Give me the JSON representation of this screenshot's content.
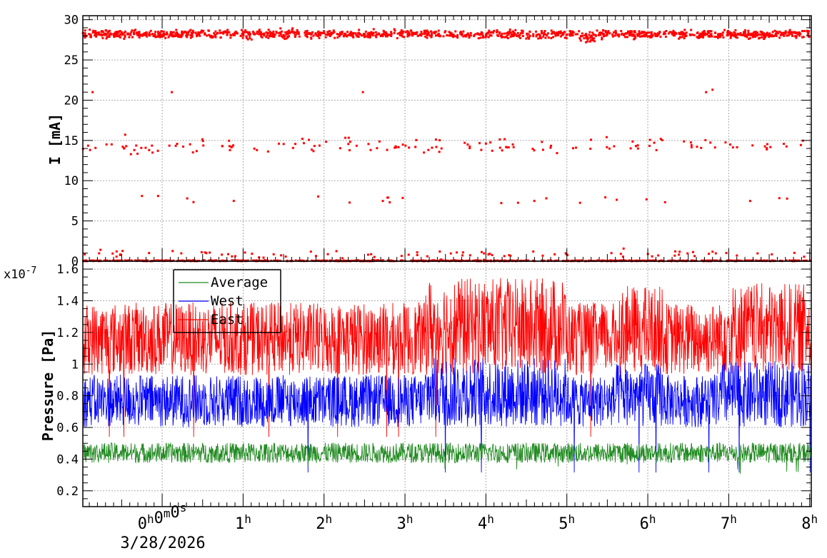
{
  "chart_data": [
    {
      "type": "scatter",
      "ylabel": "I [mA]",
      "ylim": [
        0,
        30.5
      ],
      "yticks": [
        0,
        5,
        10,
        15,
        20,
        25,
        30
      ],
      "grid": true,
      "marker_color": "#ff0000",
      "x_unit": "hours",
      "xlim": [
        -0.98,
        8.02
      ],
      "series": [
        {
          "bands": [
            {
              "name_hint": "main",
              "level": 28.2,
              "spread": 0.25,
              "count": 1300
            },
            {
              "name_hint": "mid",
              "level": 14.4,
              "spread": 0.45,
              "count": 150
            },
            {
              "name_hint": "low",
              "level": 7.6,
              "spread": 0.4,
              "count": 22
            },
            {
              "name_hint": "near-zero",
              "level": 0.8,
              "spread": 0.25,
              "count": 85
            },
            {
              "name_hint": "zero",
              "level": 0.05,
              "spread": 0.03,
              "count": 700
            }
          ],
          "points": [
            {
              "x": -0.86,
              "y": 21.0
            },
            {
              "x": 0.12,
              "y": 21.0
            },
            {
              "x": 2.48,
              "y": 21.0
            },
            {
              "x": 6.72,
              "y": 21.0
            },
            {
              "x": 6.8,
              "y": 21.3
            },
            {
              "x": -0.05,
              "y": 8.1
            },
            {
              "x": -0.25,
              "y": 8.1
            }
          ]
        }
      ]
    },
    {
      "type": "line",
      "ylabel": "Pressure [Pa]",
      "y_multiplier": "x10",
      "y_multiplier_exp": "-7",
      "ylim": [
        0.1,
        1.65
      ],
      "yticks": [
        "0.2",
        "0.4",
        "0.6",
        "0.8",
        "1",
        "1.2",
        "1.4",
        "1.6"
      ],
      "ytick_values": [
        0.2,
        0.4,
        0.6,
        0.8,
        1.0,
        1.2,
        1.4,
        1.6
      ],
      "grid": true,
      "legend_position": "top-left",
      "x_unit": "hours",
      "xlim": [
        -0.98,
        8.02
      ],
      "series": [
        {
          "name": "Average",
          "color": "#228b22",
          "base": 0.44,
          "amp": 0.08
        },
        {
          "name": "West",
          "color": "#0000ff",
          "base": 0.8,
          "amp": 0.22
        },
        {
          "name": "East",
          "color": "#ff0000",
          "base": 1.2,
          "amp": 0.3
        }
      ]
    }
  ],
  "x_axis": {
    "tick_hours": [
      0,
      1,
      2,
      3,
      4,
      5,
      6,
      7,
      8
    ],
    "labels": [
      {
        "main": "0",
        "sup": "h",
        "main2": "0",
        "sup2": "m",
        "main3": "0",
        "sup3": "s"
      },
      {
        "main": "1",
        "sup": "h"
      },
      {
        "main": "2",
        "sup": "h"
      },
      {
        "main": "3",
        "sup": "h"
      },
      {
        "main": "4",
        "sup": "h"
      },
      {
        "main": "5",
        "sup": "h"
      },
      {
        "main": "6",
        "sup": "h"
      },
      {
        "main": "7",
        "sup": "h"
      },
      {
        "main": "8",
        "sup": "h"
      }
    ],
    "date": "3/28/2026"
  },
  "legend": {
    "items": [
      {
        "label": "Average",
        "color": "#228b22"
      },
      {
        "label": "West",
        "color": "#0000ff"
      },
      {
        "label": "East",
        "color": "#ff0000"
      }
    ]
  }
}
